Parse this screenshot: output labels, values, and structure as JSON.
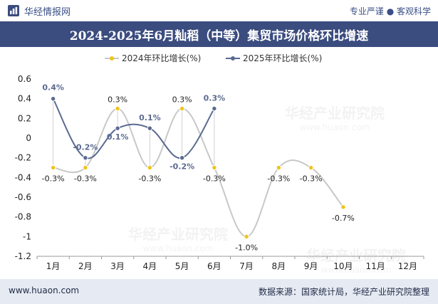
{
  "header": {
    "brand": "华经情报网",
    "tagline": "专业严谨 ● 客观科学",
    "title": "2024-2025年6月籼稻（中等）集贸市场价格环比增速"
  },
  "footer": {
    "site": "www.huaon.com",
    "source": "数据来源：国家统计局，华经产业研究院整理"
  },
  "watermark": "华经产业研究院",
  "watermark_url": "www.huaon.com",
  "colors": {
    "title_bg": "#3b4c7f",
    "series2024": "#f0c419",
    "series2025": "#5a6a90",
    "line2024": "#c8c8c8",
    "footer_bg": "#e6eaf3"
  },
  "chart_data": {
    "type": "line",
    "categories": [
      "1月",
      "2月",
      "3月",
      "4月",
      "5月",
      "6月",
      "7月",
      "8月",
      "9月",
      "10月",
      "11月",
      "12月"
    ],
    "ylim": [
      -1.2,
      0.6
    ],
    "yticks": [
      "0.6",
      "0.4",
      "0.2",
      "0",
      "-0.2",
      "-0.4",
      "-0.6",
      "-0.8",
      "-1",
      "-1.2"
    ],
    "series": [
      {
        "name": "2024年环比增长(%)",
        "values": [
          -0.3,
          -0.3,
          0.3,
          -0.3,
          0.3,
          -0.3,
          -1.0,
          -0.3,
          -0.3,
          -0.7,
          null,
          null
        ],
        "labels": [
          "-0.3%",
          "-0.3%",
          "0.3%",
          "-0.3%",
          "0.3%",
          "-0.3%",
          "-1.0%",
          "-0.3%",
          "-0.3%",
          "-0.7%",
          "",
          ""
        ]
      },
      {
        "name": "2025年环比增长(%)",
        "values": [
          0.4,
          -0.2,
          0.1,
          0.1,
          -0.2,
          0.3,
          null,
          null,
          null,
          null,
          null,
          null
        ],
        "labels": [
          "0.4%",
          "-0.2%",
          "0.1%",
          "0.1%",
          "-0.2%",
          "0.3%",
          "",
          "",
          "",
          "",
          "",
          ""
        ]
      }
    ]
  }
}
